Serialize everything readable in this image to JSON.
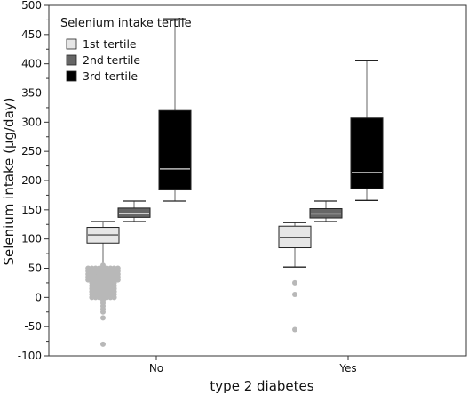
{
  "chart_data": {
    "type": "boxplot",
    "title": "",
    "xlabel": "type 2 diabetes",
    "ylabel": "Selenium intake (μg/day)",
    "ylim": [
      -100,
      500
    ],
    "yticks": [
      -100,
      -50,
      0,
      50,
      100,
      150,
      200,
      250,
      300,
      350,
      400,
      450,
      500
    ],
    "categories": [
      "No",
      "Yes"
    ],
    "grid": false,
    "legend": {
      "title": "Selenium intake tertile",
      "placement": "top-left"
    },
    "series": [
      {
        "name": "1st tertile",
        "color": "#e6e6e6",
        "median_color": "#555555",
        "boxes": [
          {
            "category": "No",
            "whisker_low": 45,
            "q1": 93,
            "median": 107,
            "q3": 120,
            "whisker_high": 130,
            "outliers": [
              55,
              50,
              45,
              40,
              35,
              30,
              25,
              20,
              15,
              10,
              5,
              0,
              -5,
              -10,
              -15,
              -20,
              -25,
              -35,
              -80
            ]
          },
          {
            "category": "Yes",
            "whisker_low": 52,
            "q1": 85,
            "median": 103,
            "q3": 122,
            "whisker_high": 128,
            "outliers": [
              25,
              5,
              -55
            ]
          }
        ]
      },
      {
        "name": "2nd tertile",
        "color": "#666666",
        "median_color": "#dddddd",
        "boxes": [
          {
            "category": "No",
            "whisker_low": 130,
            "q1": 137,
            "median": 144,
            "q3": 153,
            "whisker_high": 165,
            "outliers": []
          },
          {
            "category": "Yes",
            "whisker_low": 130,
            "q1": 136,
            "median": 143,
            "q3": 152,
            "whisker_high": 165,
            "outliers": []
          }
        ]
      },
      {
        "name": "3rd tertile",
        "color": "#000000",
        "median_color": "#bbbbbb",
        "boxes": [
          {
            "category": "No",
            "whisker_low": 165,
            "q1": 184,
            "median": 220,
            "q3": 320,
            "whisker_high": 477,
            "outliers": []
          },
          {
            "category": "Yes",
            "whisker_low": 166,
            "q1": 186,
            "median": 214,
            "q3": 307,
            "whisker_high": 405,
            "outliers": []
          }
        ]
      }
    ]
  }
}
